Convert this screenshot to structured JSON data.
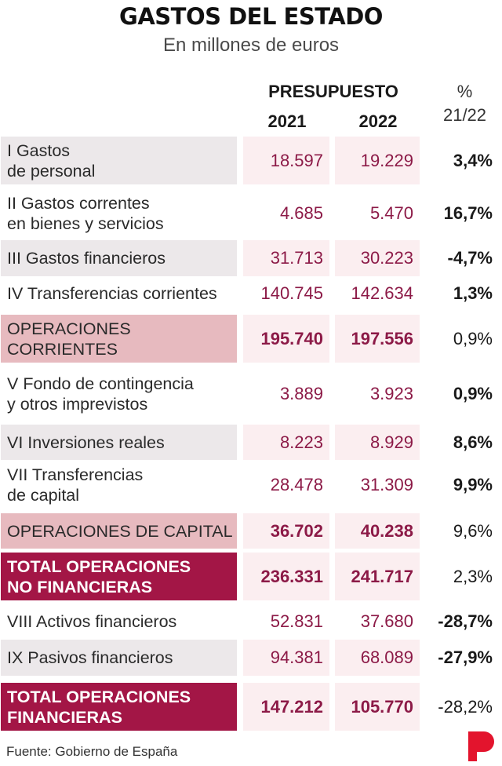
{
  "title": "GASTOS DEL ESTADO",
  "subtitle": "En millones de euros",
  "header": {
    "presupuesto": "PRESUPUESTO",
    "year1": "2021",
    "year2": "2022",
    "pct_symbol": "%",
    "pct_period": "21/22"
  },
  "chart_data": {
    "type": "table",
    "columns": [
      "",
      "2021",
      "2022",
      "% 21/22"
    ],
    "rows": [
      {
        "line1": "I Gastos",
        "line2": "de personal",
        "v2021": "18.597",
        "v2022": "19.229",
        "pct": "3,4%",
        "kind": "shaded"
      },
      {
        "line1": "II Gastos correntes",
        "line2": "en bienes y servicios",
        "v2021": "4.685",
        "v2022": "5.470",
        "pct": "16,7%",
        "kind": "plain"
      },
      {
        "line1": "III Gastos financieros",
        "line2": "",
        "v2021": "31.713",
        "v2022": "30.223",
        "pct": "-4,7%",
        "kind": "shaded"
      },
      {
        "line1": "IV Transferencias corrientes",
        "line2": "",
        "v2021": "140.745",
        "v2022": "142.634",
        "pct": "1,3%",
        "kind": "plain"
      },
      {
        "line1": "OPERACIONES",
        "line2": "CORRIENTES",
        "v2021": "195.740",
        "v2022": "197.556",
        "pct": "0,9%",
        "kind": "subtotal"
      },
      {
        "line1": "V Fondo de contingencia",
        "line2": "y otros imprevistos",
        "v2021": "3.889",
        "v2022": "3.923",
        "pct": "0,9%",
        "kind": "plain"
      },
      {
        "line1": "VI Inversiones reales",
        "line2": "",
        "v2021": "8.223",
        "v2022": "8.929",
        "pct": "8,6%",
        "kind": "shaded"
      },
      {
        "line1": "VII Transferencias",
        "line2": "de capital",
        "v2021": "28.478",
        "v2022": "31.309",
        "pct": "9,9%",
        "kind": "plain"
      },
      {
        "line1": "OPERACIONES DE CAPITAL",
        "line2": "",
        "v2021": "36.702",
        "v2022": "40.238",
        "pct": "9,6%",
        "kind": "subtotal"
      },
      {
        "line1": "TOTAL OPERACIONES",
        "line2": "NO FINANCIERAS",
        "v2021": "236.331",
        "v2022": "241.717",
        "pct": "2,3%",
        "kind": "total"
      },
      {
        "line1": "VIII Activos financieros",
        "line2": "",
        "v2021": "52.831",
        "v2022": "37.680",
        "pct": "-28,7%",
        "kind": "plain"
      },
      {
        "line1": "IX Pasivos financieros",
        "line2": "",
        "v2021": "94.381",
        "v2022": "68.089",
        "pct": "-27,9%",
        "kind": "shaded"
      },
      {
        "line1": "TOTAL OPERACIONES",
        "line2": "FINANCIERAS",
        "v2021": "147.212",
        "v2022": "105.770",
        "pct": "-28,2%",
        "kind": "total"
      }
    ]
  },
  "source": "Fuente: Gobierno de España",
  "colors": {
    "accent": "#a31646",
    "number": "#8c1a47",
    "subtotal_label_bg": "#e7babf",
    "shade_label_bg": "#ece8ea",
    "shade_num_bg": "#fbeef0"
  },
  "logo_icon": "publico-p-logo-icon"
}
